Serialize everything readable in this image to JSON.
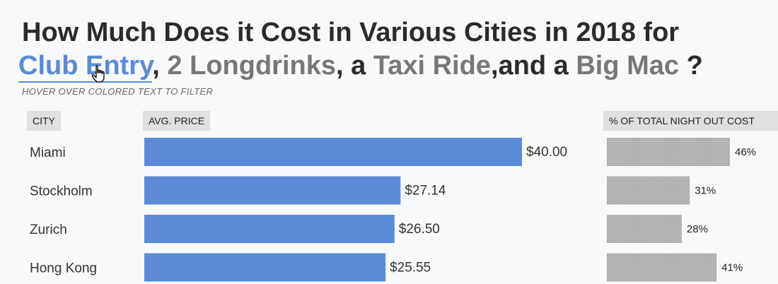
{
  "title": {
    "line1": "How Much Does it Cost in Various Cities in 2018 for",
    "filters": [
      "Club Entry",
      "2 Longdrinks",
      "Taxi Ride",
      "Big Mac"
    ],
    "joiners": [
      ",",
      ", a",
      ",and a",
      "?"
    ]
  },
  "subtitle": "HOVER OVER COLORED TEXT TO FILTER",
  "headers": {
    "city": "CITY",
    "price": "AVG. PRICE",
    "share": "% OF TOTAL NIGHT OUT COST"
  },
  "colors": {
    "primary_bar": "#5b8ad6",
    "secondary_bar": "#b3b3b3",
    "title_text": "#2b2b2b",
    "muted_filter": "#777777"
  },
  "icons": [
    "hand-cursor-icon"
  ],
  "chart_data": [
    {
      "type": "bar",
      "orientation": "horizontal",
      "categories": [
        "Miami",
        "Stockholm",
        "Zurich",
        "Hong Kong"
      ],
      "values": [
        40.0,
        27.14,
        26.5,
        25.55
      ],
      "labels": [
        "$40.00",
        "$27.14",
        "$26.50",
        "$25.55"
      ],
      "xlim": [
        0,
        40
      ]
    },
    {
      "type": "bar",
      "orientation": "horizontal",
      "categories": [
        "Miami",
        "Stockholm",
        "Zurich",
        "Hong Kong"
      ],
      "values": [
        46,
        31,
        28,
        41
      ],
      "labels": [
        "46%",
        "31%",
        "28%",
        "41%"
      ],
      "xlim": [
        0,
        46
      ]
    }
  ]
}
